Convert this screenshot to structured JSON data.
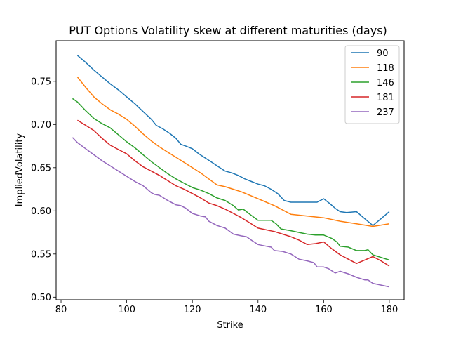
{
  "chart_data": {
    "type": "line",
    "title": "PUT Options Volatility skew at different maturities (days)",
    "xlabel": "Strike",
    "ylabel": "ImpliedVolatility",
    "xlim": [
      78.5,
      184.5
    ],
    "ylim": [
      0.497,
      0.797
    ],
    "xticks": [
      80,
      100,
      120,
      140,
      160,
      180
    ],
    "yticks": [
      0.5,
      0.55,
      0.6,
      0.65,
      0.7,
      0.75
    ],
    "legend_position": "top-right",
    "grid": false,
    "series": [
      {
        "name": "90",
        "color": "#1f77b4",
        "points": [
          [
            85,
            0.78
          ],
          [
            87.5,
            0.772
          ],
          [
            90,
            0.763
          ],
          [
            92.5,
            0.755
          ],
          [
            95,
            0.747
          ],
          [
            97.5,
            0.74
          ],
          [
            100,
            0.732
          ],
          [
            102.5,
            0.724
          ],
          [
            105,
            0.715
          ],
          [
            107.5,
            0.706
          ],
          [
            109,
            0.699
          ],
          [
            111,
            0.695
          ],
          [
            113,
            0.69
          ],
          [
            115,
            0.684
          ],
          [
            116.5,
            0.677
          ],
          [
            118,
            0.675
          ],
          [
            120,
            0.672
          ],
          [
            122,
            0.666
          ],
          [
            124,
            0.661
          ],
          [
            126,
            0.656
          ],
          [
            128,
            0.651
          ],
          [
            130,
            0.646
          ],
          [
            132,
            0.644
          ],
          [
            134,
            0.641
          ],
          [
            136,
            0.637
          ],
          [
            138,
            0.634
          ],
          [
            140,
            0.631
          ],
          [
            142,
            0.629
          ],
          [
            144,
            0.625
          ],
          [
            146,
            0.62
          ],
          [
            148,
            0.612
          ],
          [
            150,
            0.61
          ],
          [
            152,
            0.61
          ],
          [
            155,
            0.61
          ],
          [
            158,
            0.61
          ],
          [
            160,
            0.614
          ],
          [
            162,
            0.608
          ],
          [
            163.5,
            0.603
          ],
          [
            165,
            0.599
          ],
          [
            167,
            0.598
          ],
          [
            170,
            0.599
          ],
          [
            172.5,
            0.591
          ],
          [
            175,
            0.583
          ],
          [
            177.5,
            0.591
          ],
          [
            180,
            0.599
          ]
        ]
      },
      {
        "name": "118",
        "color": "#ff7f0e",
        "points": [
          [
            85,
            0.755
          ],
          [
            87.5,
            0.743
          ],
          [
            90,
            0.732
          ],
          [
            92.5,
            0.724
          ],
          [
            95,
            0.717
          ],
          [
            97.5,
            0.712
          ],
          [
            100,
            0.706
          ],
          [
            102.5,
            0.698
          ],
          [
            105,
            0.689
          ],
          [
            107.5,
            0.681
          ],
          [
            110,
            0.674
          ],
          [
            112.5,
            0.668
          ],
          [
            115,
            0.662
          ],
          [
            117.5,
            0.656
          ],
          [
            120,
            0.65
          ],
          [
            122.5,
            0.644
          ],
          [
            125,
            0.637
          ],
          [
            127.5,
            0.63
          ],
          [
            130,
            0.628
          ],
          [
            132.5,
            0.625
          ],
          [
            135,
            0.622
          ],
          [
            137.5,
            0.618
          ],
          [
            140,
            0.614
          ],
          [
            142.5,
            0.61
          ],
          [
            145,
            0.606
          ],
          [
            147.5,
            0.601
          ],
          [
            150,
            0.596
          ],
          [
            155,
            0.594
          ],
          [
            160,
            0.592
          ],
          [
            165,
            0.588
          ],
          [
            170,
            0.585
          ],
          [
            175,
            0.582
          ],
          [
            180,
            0.585
          ]
        ]
      },
      {
        "name": "146",
        "color": "#2ca02c",
        "points": [
          [
            83.5,
            0.73
          ],
          [
            85,
            0.726
          ],
          [
            87.5,
            0.716
          ],
          [
            90,
            0.707
          ],
          [
            92.5,
            0.701
          ],
          [
            95,
            0.696
          ],
          [
            97.5,
            0.688
          ],
          [
            100,
            0.68
          ],
          [
            102.5,
            0.673
          ],
          [
            105,
            0.665
          ],
          [
            107.5,
            0.657
          ],
          [
            110,
            0.65
          ],
          [
            112.5,
            0.643
          ],
          [
            115,
            0.637
          ],
          [
            117.5,
            0.632
          ],
          [
            120,
            0.627
          ],
          [
            122.5,
            0.624
          ],
          [
            125,
            0.62
          ],
          [
            127.5,
            0.615
          ],
          [
            130,
            0.612
          ],
          [
            132.5,
            0.606
          ],
          [
            134,
            0.601
          ],
          [
            135.5,
            0.602
          ],
          [
            137.5,
            0.596
          ],
          [
            140,
            0.589
          ],
          [
            142.5,
            0.589
          ],
          [
            144,
            0.589
          ],
          [
            145.5,
            0.585
          ],
          [
            147,
            0.579
          ],
          [
            150,
            0.577
          ],
          [
            152.5,
            0.575
          ],
          [
            155,
            0.573
          ],
          [
            157.5,
            0.572
          ],
          [
            160,
            0.572
          ],
          [
            162.5,
            0.568
          ],
          [
            164,
            0.564
          ],
          [
            165,
            0.559
          ],
          [
            167.5,
            0.558
          ],
          [
            170,
            0.554
          ],
          [
            172.5,
            0.554
          ],
          [
            173.5,
            0.555
          ],
          [
            175,
            0.549
          ],
          [
            177.5,
            0.546
          ],
          [
            180,
            0.543
          ]
        ]
      },
      {
        "name": "181",
        "color": "#d62728",
        "points": [
          [
            85,
            0.705
          ],
          [
            87.5,
            0.699
          ],
          [
            90,
            0.693
          ],
          [
            92.5,
            0.684
          ],
          [
            95,
            0.676
          ],
          [
            97.5,
            0.671
          ],
          [
            100,
            0.666
          ],
          [
            102.5,
            0.658
          ],
          [
            105,
            0.651
          ],
          [
            107.5,
            0.646
          ],
          [
            110,
            0.641
          ],
          [
            112.5,
            0.635
          ],
          [
            115,
            0.629
          ],
          [
            117.5,
            0.625
          ],
          [
            120,
            0.62
          ],
          [
            122.5,
            0.615
          ],
          [
            125,
            0.609
          ],
          [
            127.5,
            0.606
          ],
          [
            130,
            0.602
          ],
          [
            132.5,
            0.597
          ],
          [
            135,
            0.592
          ],
          [
            137.5,
            0.586
          ],
          [
            140,
            0.58
          ],
          [
            142.5,
            0.578
          ],
          [
            145,
            0.576
          ],
          [
            147.5,
            0.573
          ],
          [
            150,
            0.57
          ],
          [
            152.5,
            0.566
          ],
          [
            155,
            0.561
          ],
          [
            157.5,
            0.562
          ],
          [
            160,
            0.564
          ],
          [
            162.5,
            0.556
          ],
          [
            165,
            0.549
          ],
          [
            167.5,
            0.544
          ],
          [
            170,
            0.539
          ],
          [
            172.5,
            0.543
          ],
          [
            175,
            0.547
          ],
          [
            177.5,
            0.542
          ],
          [
            180,
            0.536
          ]
        ]
      },
      {
        "name": "237",
        "color": "#9467bd",
        "points": [
          [
            83.5,
            0.685
          ],
          [
            85,
            0.679
          ],
          [
            87.5,
            0.672
          ],
          [
            90,
            0.665
          ],
          [
            92.5,
            0.658
          ],
          [
            95,
            0.652
          ],
          [
            97.5,
            0.646
          ],
          [
            100,
            0.64
          ],
          [
            102.5,
            0.634
          ],
          [
            105,
            0.629
          ],
          [
            107.5,
            0.621
          ],
          [
            108.5,
            0.619
          ],
          [
            110,
            0.618
          ],
          [
            112.5,
            0.612
          ],
          [
            115,
            0.607
          ],
          [
            116.5,
            0.606
          ],
          [
            118,
            0.603
          ],
          [
            120,
            0.597
          ],
          [
            122.5,
            0.594
          ],
          [
            124,
            0.593
          ],
          [
            125,
            0.588
          ],
          [
            127.5,
            0.583
          ],
          [
            130,
            0.58
          ],
          [
            132.5,
            0.573
          ],
          [
            135,
            0.571
          ],
          [
            136.5,
            0.57
          ],
          [
            138,
            0.566
          ],
          [
            140,
            0.561
          ],
          [
            142.5,
            0.559
          ],
          [
            144,
            0.558
          ],
          [
            145,
            0.554
          ],
          [
            147.5,
            0.553
          ],
          [
            150,
            0.55
          ],
          [
            152.5,
            0.544
          ],
          [
            155,
            0.542
          ],
          [
            157,
            0.54
          ],
          [
            158,
            0.535
          ],
          [
            160,
            0.535
          ],
          [
            161.5,
            0.533
          ],
          [
            163.5,
            0.528
          ],
          [
            165,
            0.53
          ],
          [
            167.5,
            0.527
          ],
          [
            170,
            0.523
          ],
          [
            172.5,
            0.52
          ],
          [
            173.5,
            0.52
          ],
          [
            175,
            0.516
          ],
          [
            177.5,
            0.514
          ],
          [
            180,
            0.512
          ]
        ]
      }
    ]
  }
}
